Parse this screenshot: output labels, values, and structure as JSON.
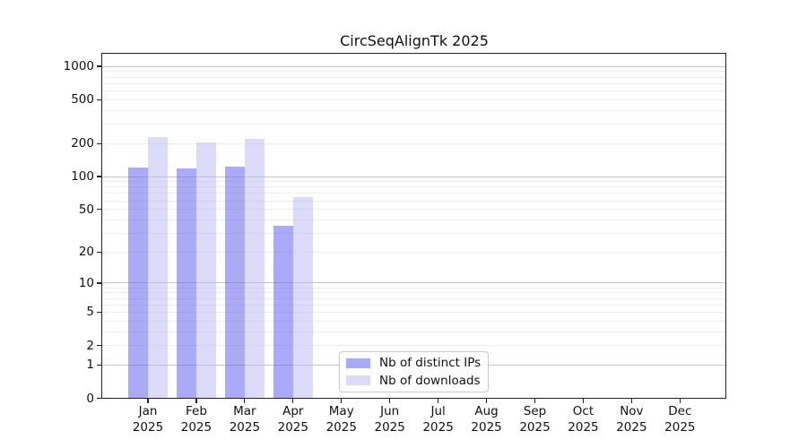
{
  "chart_data": {
    "type": "bar",
    "title": "CircSeqAlignTk 2025",
    "year": "2025",
    "categories": [
      "Jan",
      "Feb",
      "Mar",
      "Apr",
      "May",
      "Jun",
      "Jul",
      "Aug",
      "Sep",
      "Oct",
      "Nov",
      "Dec"
    ],
    "series": [
      {
        "name": "Nb of distinct IPs",
        "color": "#6464f0",
        "opacity": 0.55,
        "values": [
          120,
          118,
          123,
          35,
          null,
          null,
          null,
          null,
          null,
          null,
          null,
          null
        ]
      },
      {
        "name": "Nb of downloads",
        "color": "#b9b9f5",
        "opacity": 0.5,
        "values": [
          230,
          205,
          222,
          65,
          null,
          null,
          null,
          null,
          null,
          null,
          null,
          null
        ]
      }
    ],
    "y_ticks": [
      0,
      1,
      2,
      5,
      10,
      20,
      50,
      100,
      200,
      500,
      1000
    ],
    "y_scale": "log10(value+1)",
    "ylim": [
      0,
      1310
    ],
    "grid": "horizontal, log minor + decade major",
    "legend_position": "lower center"
  }
}
